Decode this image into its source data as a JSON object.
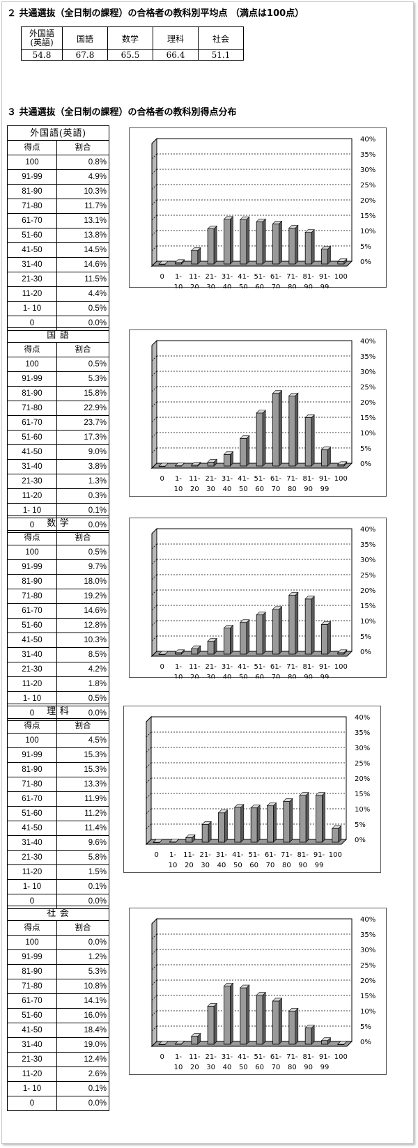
{
  "section2": {
    "heading": "２ 共通選抜（全日制の課程）の合格者の教科別平均点 （満点は100点）",
    "header_top": "外国語",
    "header_sub": "(英語)",
    "subjects": [
      "国語",
      "数学",
      "理科",
      "社会"
    ],
    "values": [
      "54.8",
      "67.8",
      "65.5",
      "66.4",
      "51.1"
    ]
  },
  "section3": {
    "heading": "３ 共通選抜（全日制の課程）の合格者の教科別得点分布",
    "col_score": "得点",
    "col_ratio": "割合"
  },
  "subjects": [
    {
      "title": "外国語(英語)",
      "rows": [
        {
          "range": "100",
          "pct": "0.8%"
        },
        {
          "range": "91-99",
          "pct": "4.9%"
        },
        {
          "range": "81-90",
          "pct": "10.3%"
        },
        {
          "range": "71-80",
          "pct": "11.7%"
        },
        {
          "range": "61-70",
          "pct": "13.1%"
        },
        {
          "range": "51-60",
          "pct": "13.8%"
        },
        {
          "range": "41-50",
          "pct": "14.5%"
        },
        {
          "range": "31-40",
          "pct": "14.6%"
        },
        {
          "range": "21-30",
          "pct": "11.5%"
        },
        {
          "range": "11-20",
          "pct": "4.4%"
        },
        {
          "range": "1- 10",
          "pct": "0.5%"
        },
        {
          "range": "0",
          "pct": "0.0%"
        }
      ]
    },
    {
      "title": "国 語",
      "rows": [
        {
          "range": "100",
          "pct": "0.5%"
        },
        {
          "range": "91-99",
          "pct": "5.3%"
        },
        {
          "range": "81-90",
          "pct": "15.8%"
        },
        {
          "range": "71-80",
          "pct": "22.9%"
        },
        {
          "range": "61-70",
          "pct": "23.7%"
        },
        {
          "range": "51-60",
          "pct": "17.3%"
        },
        {
          "range": "41-50",
          "pct": "9.0%"
        },
        {
          "range": "31-40",
          "pct": "3.8%"
        },
        {
          "range": "21-30",
          "pct": "1.3%"
        },
        {
          "range": "11-20",
          "pct": "0.3%"
        },
        {
          "range": "1- 10",
          "pct": "0.1%"
        },
        {
          "range": "0",
          "pct": "0.0%"
        }
      ]
    },
    {
      "title": "数 学",
      "rows": [
        {
          "range": "100",
          "pct": "0.5%"
        },
        {
          "range": "91-99",
          "pct": "9.7%"
        },
        {
          "range": "81-90",
          "pct": "18.0%"
        },
        {
          "range": "71-80",
          "pct": "19.2%"
        },
        {
          "range": "61-70",
          "pct": "14.6%"
        },
        {
          "range": "51-60",
          "pct": "12.8%"
        },
        {
          "range": "41-50",
          "pct": "10.3%"
        },
        {
          "range": "31-40",
          "pct": "8.5%"
        },
        {
          "range": "21-30",
          "pct": "4.2%"
        },
        {
          "range": "11-20",
          "pct": "1.8%"
        },
        {
          "range": "1- 10",
          "pct": "0.5%"
        },
        {
          "range": "0",
          "pct": "0.0%"
        }
      ]
    },
    {
      "title": "理 科",
      "rows": [
        {
          "range": "100",
          "pct": "4.5%"
        },
        {
          "range": "91-99",
          "pct": "15.3%"
        },
        {
          "range": "81-90",
          "pct": "15.3%"
        },
        {
          "range": "71-80",
          "pct": "13.3%"
        },
        {
          "range": "61-70",
          "pct": "11.9%"
        },
        {
          "range": "51-60",
          "pct": "11.2%"
        },
        {
          "range": "41-50",
          "pct": "11.4%"
        },
        {
          "range": "31-40",
          "pct": "9.6%"
        },
        {
          "range": "21-30",
          "pct": "5.8%"
        },
        {
          "range": "11-20",
          "pct": "1.5%"
        },
        {
          "range": "1- 10",
          "pct": "0.1%"
        },
        {
          "range": "0",
          "pct": "0.0%"
        }
      ]
    },
    {
      "title": "社 会",
      "rows": [
        {
          "range": "100",
          "pct": "0.0%"
        },
        {
          "range": "91-99",
          "pct": "1.2%"
        },
        {
          "range": "81-90",
          "pct": "5.3%"
        },
        {
          "range": "71-80",
          "pct": "10.8%"
        },
        {
          "range": "61-70",
          "pct": "14.1%"
        },
        {
          "range": "51-60",
          "pct": "16.0%"
        },
        {
          "range": "41-50",
          "pct": "18.4%"
        },
        {
          "range": "31-40",
          "pct": "19.0%"
        },
        {
          "range": "21-30",
          "pct": "12.4%"
        },
        {
          "range": "11-20",
          "pct": "2.6%"
        },
        {
          "range": "1- 10",
          "pct": "0.1%"
        },
        {
          "range": "0",
          "pct": "0.0%"
        }
      ]
    }
  ],
  "chart_data": [
    {
      "type": "bar",
      "subject": "外国語(英語)",
      "categories": [
        "0",
        "1-10",
        "11-20",
        "21-30",
        "31-40",
        "41-50",
        "51-60",
        "61-70",
        "71-80",
        "81-90",
        "91-99",
        "100"
      ],
      "values": [
        0.0,
        0.5,
        4.4,
        11.5,
        14.6,
        14.5,
        13.8,
        13.1,
        11.7,
        10.3,
        4.9,
        0.8
      ],
      "ylim": [
        0,
        40
      ],
      "yticks": [
        "0%",
        "5%",
        "10%",
        "15%",
        "20%",
        "25%",
        "30%",
        "35%",
        "40%"
      ],
      "grid": true,
      "bar_color": "#9a9a9a"
    },
    {
      "type": "bar",
      "subject": "国語",
      "categories": [
        "0",
        "1-10",
        "11-20",
        "21-30",
        "31-40",
        "41-50",
        "51-60",
        "61-70",
        "71-80",
        "81-90",
        "91-99",
        "100"
      ],
      "values": [
        0.0,
        0.1,
        0.3,
        1.3,
        3.8,
        9.0,
        17.3,
        23.7,
        22.9,
        15.8,
        5.3,
        0.5
      ],
      "ylim": [
        0,
        40
      ],
      "yticks": [
        "0%",
        "5%",
        "10%",
        "15%",
        "20%",
        "25%",
        "30%",
        "35%",
        "40%"
      ],
      "grid": true,
      "bar_color": "#9a9a9a"
    },
    {
      "type": "bar",
      "subject": "数学",
      "categories": [
        "0",
        "1-10",
        "11-20",
        "21-30",
        "31-40",
        "41-50",
        "51-60",
        "61-70",
        "71-80",
        "81-90",
        "91-99",
        "100"
      ],
      "values": [
        0.0,
        0.5,
        1.8,
        4.2,
        8.5,
        10.3,
        12.8,
        14.6,
        19.2,
        18.0,
        9.7,
        0.5
      ],
      "ylim": [
        0,
        40
      ],
      "yticks": [
        "0%",
        "5%",
        "10%",
        "15%",
        "20%",
        "25%",
        "30%",
        "35%",
        "40%"
      ],
      "grid": true,
      "bar_color": "#9a9a9a"
    },
    {
      "type": "bar",
      "subject": "理科",
      "categories": [
        "0",
        "1-10",
        "11-20",
        "21-30",
        "31-40",
        "41-50",
        "51-60",
        "61-70",
        "71-80",
        "81-90",
        "91-99",
        "100"
      ],
      "values": [
        0.0,
        0.1,
        1.5,
        5.8,
        9.6,
        11.4,
        11.2,
        11.9,
        13.3,
        15.3,
        15.3,
        4.5
      ],
      "ylim": [
        0,
        40
      ],
      "yticks": [
        "0%",
        "5%",
        "10%",
        "15%",
        "20%",
        "25%",
        "30%",
        "35%",
        "40%"
      ],
      "grid": true,
      "bar_color": "#9a9a9a"
    },
    {
      "type": "bar",
      "subject": "社会",
      "categories": [
        "0",
        "1-10",
        "11-20",
        "21-30",
        "31-40",
        "41-50",
        "51-60",
        "61-70",
        "71-80",
        "81-90",
        "91-99",
        "100"
      ],
      "values": [
        0.0,
        0.1,
        2.6,
        12.4,
        19.0,
        18.4,
        16.0,
        14.1,
        10.8,
        5.3,
        1.2,
        0.0
      ],
      "ylim": [
        0,
        40
      ],
      "yticks": [
        "0%",
        "5%",
        "10%",
        "15%",
        "20%",
        "25%",
        "30%",
        "35%",
        "40%"
      ],
      "grid": true,
      "bar_color": "#9a9a9a"
    }
  ],
  "axis_labels": {
    "line1": [
      "0",
      "1-",
      "11-",
      "21-",
      "31-",
      "41-",
      "51-",
      "61-",
      "71-",
      "81-",
      "91-",
      "100"
    ],
    "line2": [
      "",
      "10",
      "20",
      "30",
      "40",
      "50",
      "60",
      "70",
      "80",
      "90",
      "99",
      ""
    ]
  }
}
